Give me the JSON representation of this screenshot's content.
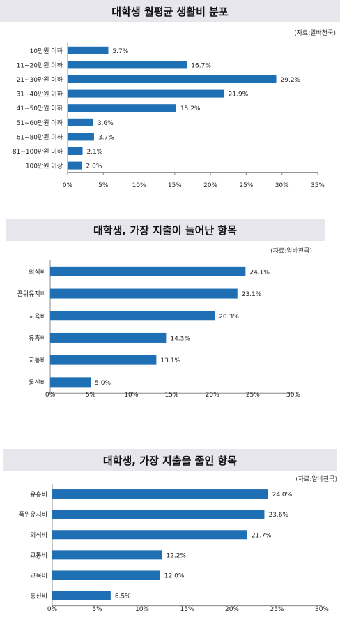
{
  "chart_data": [
    {
      "type": "bar",
      "orientation": "horizontal",
      "title": "대학생 월평균 생활비 분포",
      "source": "(자료:알바천국)",
      "categories": [
        "10만원 이하",
        "11~20만원 이하",
        "21~30만원 이하",
        "31~40만원 이하",
        "41~50만원 이하",
        "51~60만원 이하",
        "61~80만원 이하",
        "81~100만원 이하",
        "100만원 이상"
      ],
      "values": [
        5.7,
        16.7,
        29.2,
        21.9,
        15.2,
        3.6,
        3.7,
        2.1,
        2.0
      ],
      "value_labels": [
        "5.7%",
        "16.7%",
        "29.2%",
        "21.9%",
        "15.2%",
        "3.6%",
        "3.7%",
        "2.1%",
        "2.0%"
      ],
      "xlim": [
        0,
        35
      ],
      "xticks": [
        "0%",
        "5%",
        "10%",
        "15%",
        "20%",
        "25%",
        "30%",
        "35%"
      ],
      "bar_color": "#1f6fb5",
      "grid": false
    },
    {
      "type": "bar",
      "orientation": "horizontal",
      "title": "대학생, 가장 지출이 늘어난 항목",
      "source": "(자료:알바천국)",
      "categories": [
        "외식비",
        "품위유지비",
        "교육비",
        "유흥비",
        "교통비",
        "통신비"
      ],
      "values": [
        24.1,
        23.1,
        20.3,
        14.3,
        13.1,
        5.0
      ],
      "value_labels": [
        "24.1%",
        "23.1%",
        "20.3%",
        "14.3%",
        "13.1%",
        "5.0%"
      ],
      "xlim": [
        0,
        30
      ],
      "xticks": [
        "0%",
        "5%",
        "10%",
        "15%",
        "20%",
        "25%",
        "30%"
      ],
      "bar_color": "#1f6fb5",
      "grid": false
    },
    {
      "type": "bar",
      "orientation": "horizontal",
      "title": "대학생, 가장 지출을 줄인 항목",
      "source": "(자료:알바천국)",
      "categories": [
        "유흥비",
        "품위유지비",
        "외식비",
        "교통비",
        "교육비",
        "통신비"
      ],
      "values": [
        24.0,
        23.6,
        21.7,
        12.2,
        12.0,
        6.5
      ],
      "value_labels": [
        "24.0%",
        "23.6%",
        "21.7%",
        "12.2%",
        "12.0%",
        "6.5%"
      ],
      "xlim": [
        0,
        30
      ],
      "xticks": [
        "0%",
        "5%",
        "10%",
        "15%",
        "20%",
        "25%",
        "30%"
      ],
      "bar_color": "#1f6fb5",
      "grid": false
    }
  ]
}
